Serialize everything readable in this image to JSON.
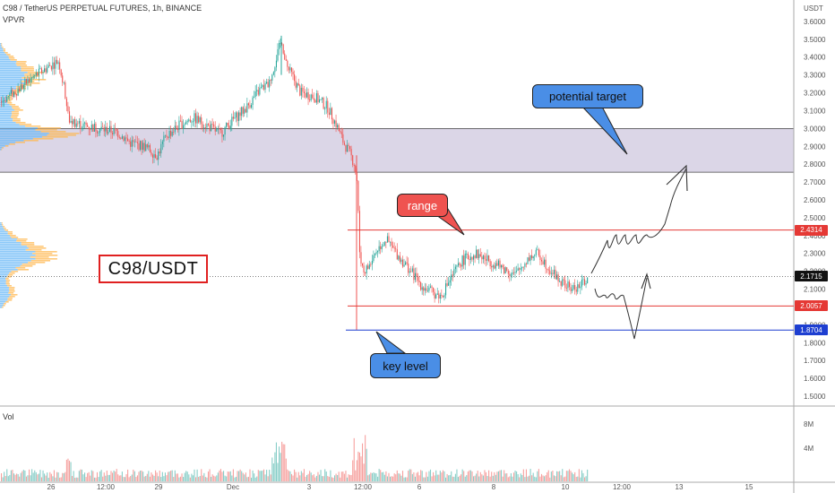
{
  "header": {
    "title": "C98 / TetherUS PERPETUAL FUTURES, 1h, BINANCE",
    "indicator": "VPVR",
    "volume_label": "Vol"
  },
  "symbol_box": {
    "text": "C98/USDT"
  },
  "annotations": {
    "potential_target": "potential target",
    "range": "range",
    "key_level": "key level"
  },
  "colors": {
    "up": "#26a69a",
    "down": "#ef5350",
    "zone": "#cfc8df",
    "red_line": "#e53935",
    "blue_line": "#1e3fd1",
    "callout_blue": "#4a8ee6",
    "callout_red": "#ef5350",
    "vp_blue": "#64b5f6",
    "vp_orange": "#ffb74d"
  },
  "chart_data": {
    "type": "candlestick",
    "price_axis": {
      "unit": "USDT",
      "ticks": [
        "3.6000",
        "3.5000",
        "3.4000",
        "3.3000",
        "3.2000",
        "3.1000",
        "3.0000",
        "2.9000",
        "2.8000",
        "2.7000",
        "2.6000",
        "2.5000",
        "2.4000",
        "2.3000",
        "2.2000",
        "2.1000",
        "2.0000",
        "1.9000",
        "1.8000",
        "1.7000",
        "1.6000",
        "1.5000"
      ],
      "range": [
        1.45,
        3.72
      ]
    },
    "time_axis": {
      "ticks": [
        "26",
        "12:00",
        "29",
        "Dec",
        "3",
        "12:00",
        "6",
        "8",
        "10",
        "12:00",
        "13",
        "15"
      ]
    },
    "volume_axis": {
      "ticks": [
        "8M",
        "4M"
      ]
    },
    "price_labels": [
      {
        "text": "2.4314",
        "value": 2.4314,
        "color": "#e53935"
      },
      {
        "text": "2.1715",
        "value": 2.1715,
        "color": "#111111"
      },
      {
        "text": "2.0057",
        "value": 2.0057,
        "color": "#e53935"
      },
      {
        "text": "1.8704",
        "value": 1.8704,
        "color": "#1e3fd1"
      }
    ],
    "levels": {
      "zone": [
        2.755,
        3.0
      ],
      "range_high": 2.4314,
      "range_low": 2.0057,
      "key_level": 1.8704,
      "last_price": 2.1715
    },
    "price_path": [
      [
        0,
        3.15
      ],
      [
        20,
        3.22
      ],
      [
        40,
        3.3
      ],
      [
        55,
        3.35
      ],
      [
        65,
        3.38
      ],
      [
        72,
        3.2
      ],
      [
        76,
        3.05
      ],
      [
        90,
        3.02
      ],
      [
        110,
        3.0
      ],
      [
        130,
        2.98
      ],
      [
        145,
        2.92
      ],
      [
        160,
        2.9
      ],
      [
        175,
        2.85
      ],
      [
        185,
        2.96
      ],
      [
        200,
        3.02
      ],
      [
        215,
        3.06
      ],
      [
        230,
        3.02
      ],
      [
        245,
        2.97
      ],
      [
        260,
        3.05
      ],
      [
        275,
        3.12
      ],
      [
        290,
        3.22
      ],
      [
        300,
        3.25
      ],
      [
        308,
        3.4
      ],
      [
        314,
        3.5
      ],
      [
        318,
        3.36
      ],
      [
        325,
        3.3
      ],
      [
        335,
        3.2
      ],
      [
        350,
        3.18
      ],
      [
        365,
        3.12
      ],
      [
        375,
        3.02
      ],
      [
        383,
        2.92
      ],
      [
        390,
        2.86
      ],
      [
        395,
        2.8
      ],
      [
        398,
        2.7
      ],
      [
        401,
        2.3
      ],
      [
        405,
        2.2
      ],
      [
        410,
        2.22
      ],
      [
        420,
        2.32
      ],
      [
        430,
        2.38
      ],
      [
        445,
        2.28
      ],
      [
        458,
        2.2
      ],
      [
        470,
        2.12
      ],
      [
        482,
        2.08
      ],
      [
        492,
        2.06
      ],
      [
        500,
        2.14
      ],
      [
        515,
        2.26
      ],
      [
        530,
        2.3
      ],
      [
        545,
        2.26
      ],
      [
        560,
        2.22
      ],
      [
        575,
        2.18
      ],
      [
        590,
        2.28
      ],
      [
        600,
        2.3
      ],
      [
        612,
        2.22
      ],
      [
        625,
        2.14
      ],
      [
        638,
        2.1
      ],
      [
        648,
        2.12
      ],
      [
        656,
        2.17
      ]
    ],
    "series": [
      {
        "name": "Vol",
        "type": "volume"
      }
    ]
  }
}
